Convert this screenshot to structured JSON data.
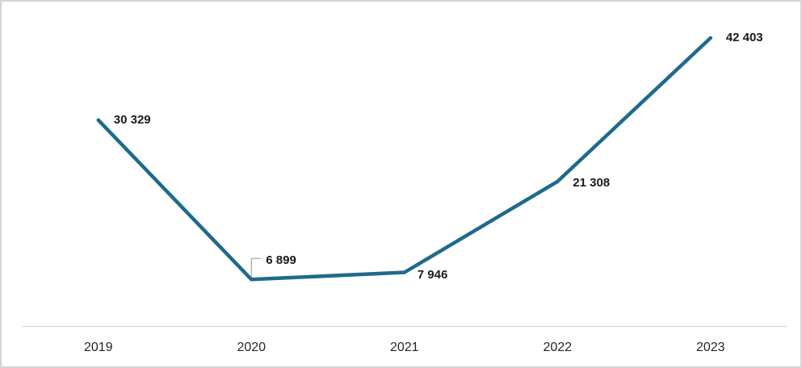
{
  "chart_data": {
    "type": "line",
    "categories": [
      "2019",
      "2020",
      "2021",
      "2022",
      "2023"
    ],
    "values": [
      30329,
      6899,
      7946,
      21308,
      42403
    ],
    "labels": [
      "30 329",
      "6 899",
      "7 946",
      "21 308",
      "42 403"
    ],
    "title": "",
    "xlabel": "",
    "ylabel": "",
    "ylim": [
      0,
      42403
    ],
    "grid": false,
    "legend": "none",
    "series_color": "#1f6a8c",
    "axis_line_color": "#d9d9d9",
    "leader_line_color": "#a6a6a6",
    "label_color": "#1a1a1a",
    "axis_label_color": "#262626"
  }
}
